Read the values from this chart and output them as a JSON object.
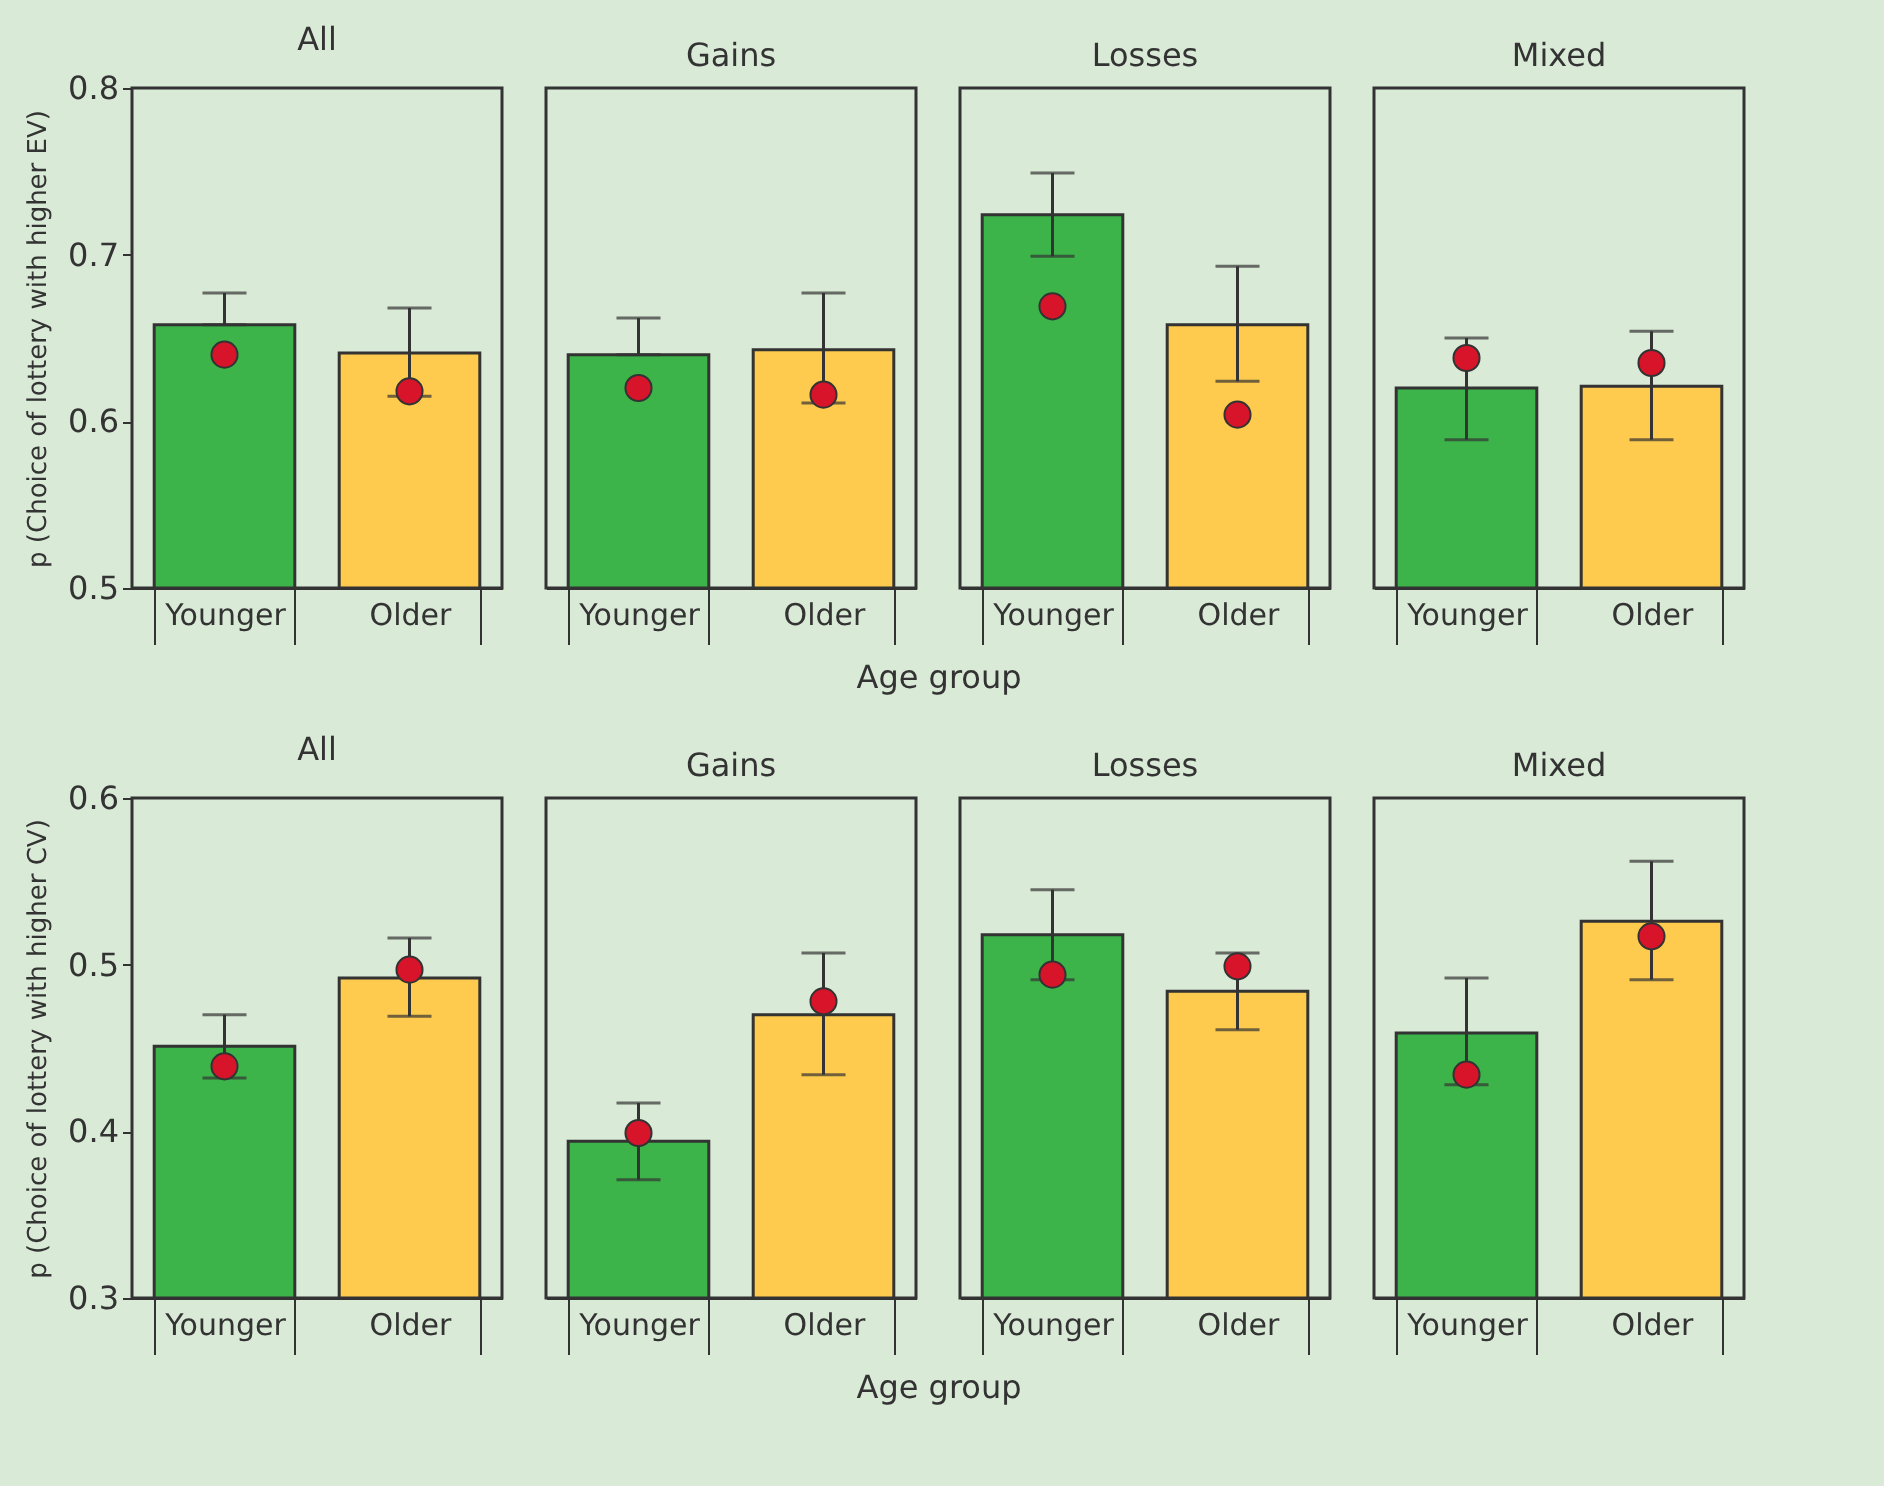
{
  "chart_data": [
    {
      "type": "bar",
      "title": "All",
      "ylabel": "p (Choice of lottery with higher EV)",
      "categories": [
        "Younger",
        "Older"
      ],
      "ylim": [
        0.5,
        0.8
      ],
      "yticks": [
        0.5,
        0.6,
        0.7,
        0.8
      ],
      "series": [
        {
          "type": "bar",
          "colors": [
            "#3cb44a",
            "#fecb4f"
          ],
          "values": [
            0.658,
            0.641
          ],
          "errors": [
            [
              0.658,
              0.677
            ],
            [
              0.615,
              0.668
            ]
          ]
        },
        {
          "type": "scatter",
          "marker": "circle",
          "color": "#d7142a",
          "values": [
            0.64,
            0.618
          ]
        }
      ]
    },
    {
      "type": "bar",
      "title": "Gains",
      "xlabel": "Age group",
      "categories": [
        "Younger",
        "Older"
      ],
      "ylim": [
        0.5,
        0.8
      ],
      "tick_labels": "x",
      "series": [
        {
          "type": "bar",
          "colors": [
            "#3cb44a",
            "#fecb4f"
          ],
          "values": [
            0.64,
            0.643
          ],
          "errors": [
            [
              0.64,
              0.662
            ],
            [
              0.611,
              0.677
            ]
          ]
        },
        {
          "type": "scatter",
          "marker": "circle",
          "color": "#d7142a",
          "values": [
            0.62,
            0.616
          ]
        }
      ]
    },
    {
      "type": "bar",
      "title": "Losses",
      "categories": [
        "Younger",
        "Older"
      ],
      "ylim": [
        0.5,
        0.8
      ],
      "tick_labels": "x",
      "series": [
        {
          "type": "bar",
          "colors": [
            "#3cb44a",
            "#fecb4f"
          ],
          "values": [
            0.724,
            0.658
          ],
          "errors": [
            [
              0.699,
              0.749
            ],
            [
              0.624,
              0.693
            ]
          ]
        },
        {
          "type": "scatter",
          "marker": "circle",
          "color": "#d7142a",
          "values": [
            0.669,
            0.604
          ]
        }
      ]
    },
    {
      "type": "bar",
      "title": "Mixed",
      "categories": [
        "Younger",
        "Older"
      ],
      "ylim": [
        0.5,
        0.8
      ],
      "tick_labels": "x",
      "series": [
        {
          "type": "bar",
          "colors": [
            "#3cb44a",
            "#fecb4f"
          ],
          "values": [
            0.62,
            0.621
          ],
          "errors": [
            [
              0.589,
              0.65
            ],
            [
              0.589,
              0.654
            ]
          ]
        },
        {
          "type": "scatter",
          "marker": "circle",
          "color": "#d7142a",
          "values": [
            0.638,
            0.635
          ]
        }
      ]
    },
    {
      "type": "bar",
      "title": "All",
      "ylabel": "p (Choice of lottery with higher CV)",
      "categories": [
        "Younger",
        "Older"
      ],
      "ylim": [
        0.3,
        0.6
      ],
      "yticks": [
        0.3,
        0.4,
        0.5,
        0.6
      ],
      "series": [
        {
          "type": "bar",
          "colors": [
            "#3cb44a",
            "#fecb4f"
          ],
          "values": [
            0.451,
            0.492
          ],
          "errors": [
            [
              0.432,
              0.47
            ],
            [
              0.469,
              0.516
            ]
          ]
        },
        {
          "type": "scatter",
          "marker": "circle",
          "color": "#d7142a",
          "values": [
            0.439,
            0.497
          ]
        }
      ]
    },
    {
      "type": "bar",
      "title": "Gains",
      "xlabel": "Age group",
      "categories": [
        "Younger",
        "Older"
      ],
      "ylim": [
        0.3,
        0.6
      ],
      "tick_labels": "x",
      "series": [
        {
          "type": "bar",
          "colors": [
            "#3cb44a",
            "#fecb4f"
          ],
          "values": [
            0.394,
            0.47
          ],
          "errors": [
            [
              0.371,
              0.417
            ],
            [
              0.434,
              0.507
            ]
          ]
        },
        {
          "type": "scatter",
          "marker": "circle",
          "color": "#d7142a",
          "values": [
            0.399,
            0.478
          ]
        }
      ]
    },
    {
      "type": "bar",
      "title": "Losses",
      "categories": [
        "Younger",
        "Older"
      ],
      "ylim": [
        0.3,
        0.6
      ],
      "tick_labels": "x",
      "series": [
        {
          "type": "bar",
          "colors": [
            "#3cb44a",
            "#fecb4f"
          ],
          "values": [
            0.518,
            0.484
          ],
          "errors": [
            [
              0.491,
              0.545
            ],
            [
              0.461,
              0.507
            ]
          ]
        },
        {
          "type": "scatter",
          "marker": "circle",
          "color": "#d7142a",
          "values": [
            0.494,
            0.499
          ]
        }
      ]
    },
    {
      "type": "bar",
      "title": "Mixed",
      "categories": [
        "Younger",
        "Older"
      ],
      "ylim": [
        0.3,
        0.6
      ],
      "tick_labels": "x",
      "series": [
        {
          "type": "bar",
          "colors": [
            "#3cb44a",
            "#fecb4f"
          ],
          "values": [
            0.459,
            0.526
          ],
          "errors": [
            [
              0.428,
              0.492
            ],
            [
              0.491,
              0.562
            ]
          ]
        },
        {
          "type": "scatter",
          "marker": "circle",
          "color": "#d7142a",
          "values": [
            0.434,
            0.517
          ]
        }
      ]
    }
  ]
}
